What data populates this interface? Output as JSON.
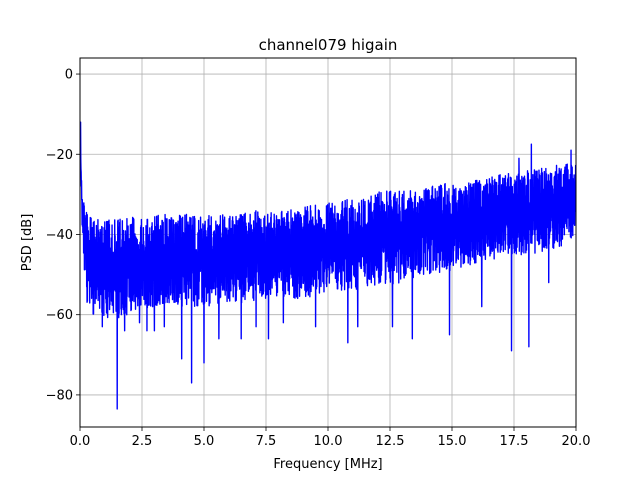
{
  "chart_data": {
    "type": "line",
    "title": "channel079 higain",
    "xlabel": "Frequency [MHz]",
    "ylabel": "PSD [dB]",
    "xlim": [
      0,
      20
    ],
    "ylim": [
      -88,
      4
    ],
    "xticks": [
      0,
      2.5,
      5,
      7.5,
      10,
      12.5,
      15,
      17.5,
      20
    ],
    "xtick_labels": [
      "0.0",
      "2.5",
      "5.0",
      "7.5",
      "10.0",
      "12.5",
      "15.0",
      "17.5",
      "20.0"
    ],
    "yticks": [
      0,
      -20,
      -40,
      -60,
      -80
    ],
    "ytick_labels": [
      "0",
      "−20",
      "−40",
      "−60",
      "−80"
    ],
    "grid": true,
    "color": "#0000ff",
    "series": [
      {
        "envelope_x": [
          0.0,
          0.05,
          0.1,
          0.2,
          0.3,
          0.5,
          1.0,
          1.5,
          2.0,
          2.5,
          3.0,
          4.0,
          5.0,
          6.0,
          7.0,
          8.0,
          9.0,
          10.0,
          11.0,
          12.0,
          13.0,
          14.0,
          15.0,
          16.0,
          17.0,
          18.0,
          19.0,
          20.0
        ],
        "envelope_upper": [
          -12,
          -24,
          -30,
          -33,
          -35,
          -36,
          -36,
          -36,
          -36,
          -35,
          -35,
          -35,
          -35,
          -35,
          -34,
          -34,
          -33,
          -32,
          -31,
          -29,
          -29,
          -28,
          -27,
          -26,
          -25,
          -24,
          -23,
          -22
        ],
        "envelope_lower": [
          -12,
          -30,
          -43,
          -52,
          -58,
          -60,
          -61,
          -61,
          -60,
          -59,
          -59,
          -58,
          -58,
          -57,
          -57,
          -56,
          -56,
          -55,
          -54,
          -53,
          -52,
          -50,
          -49,
          -47,
          -46,
          -45,
          -44,
          -42
        ],
        "dips": [
          {
            "x": 0.9,
            "y": -63
          },
          {
            "x": 1.5,
            "y": -83.5
          },
          {
            "x": 1.8,
            "y": -64
          },
          {
            "x": 2.4,
            "y": -62
          },
          {
            "x": 2.7,
            "y": -64
          },
          {
            "x": 3.0,
            "y": -64
          },
          {
            "x": 3.4,
            "y": -63
          },
          {
            "x": 4.1,
            "y": -71
          },
          {
            "x": 4.5,
            "y": -77
          },
          {
            "x": 5.0,
            "y": -72
          },
          {
            "x": 5.6,
            "y": -66
          },
          {
            "x": 6.5,
            "y": -66
          },
          {
            "x": 7.1,
            "y": -63
          },
          {
            "x": 7.6,
            "y": -66
          },
          {
            "x": 8.2,
            "y": -62
          },
          {
            "x": 9.5,
            "y": -63
          },
          {
            "x": 10.8,
            "y": -67
          },
          {
            "x": 11.2,
            "y": -63
          },
          {
            "x": 12.6,
            "y": -63
          },
          {
            "x": 13.4,
            "y": -66
          },
          {
            "x": 14.9,
            "y": -65
          },
          {
            "x": 16.2,
            "y": -58
          },
          {
            "x": 17.4,
            "y": -69
          },
          {
            "x": 18.1,
            "y": -68
          },
          {
            "x": 18.9,
            "y": -52
          }
        ],
        "peaks": [
          {
            "x": 0.02,
            "y": -12
          },
          {
            "x": 18.2,
            "y": -17.5
          },
          {
            "x": 19.8,
            "y": -19
          },
          {
            "x": 17.7,
            "y": -21
          }
        ]
      }
    ]
  }
}
